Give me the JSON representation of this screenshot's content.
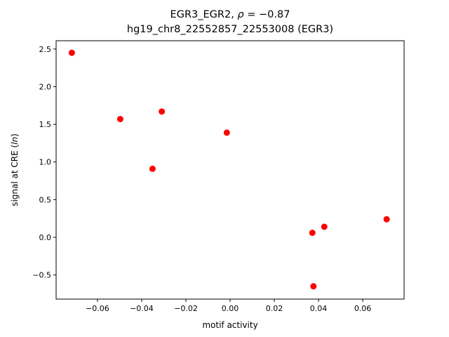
{
  "chart_data": {
    "type": "scatter",
    "title": {
      "prefix": "EGR3_EGR2, ",
      "rho_symbol": "ρ",
      "rho_text": " = −0.87",
      "line2": "hg19_chr8_22552857_22553008 (EGR3)"
    },
    "xlabel": "motif activity",
    "ylabel": {
      "text": "signal at CRE (",
      "italic": "ln",
      "close": ")"
    },
    "xlim": [
      -0.0787,
      0.0787
    ],
    "ylim": [
      -0.82,
      2.61
    ],
    "x_ticks": [
      {
        "value": -0.06,
        "label": "−0.06"
      },
      {
        "value": -0.04,
        "label": "−0.04"
      },
      {
        "value": -0.02,
        "label": "−0.02"
      },
      {
        "value": 0.0,
        "label": "0.00"
      },
      {
        "value": 0.02,
        "label": "0.02"
      },
      {
        "value": 0.04,
        "label": "0.04"
      },
      {
        "value": 0.06,
        "label": "0.06"
      }
    ],
    "y_ticks": [
      {
        "value": -0.5,
        "label": "−0.5"
      },
      {
        "value": 0.0,
        "label": "0.0"
      },
      {
        "value": 0.5,
        "label": "0.5"
      },
      {
        "value": 1.0,
        "label": "1.0"
      },
      {
        "value": 1.5,
        "label": "1.5"
      },
      {
        "value": 2.0,
        "label": "2.0"
      },
      {
        "value": 2.5,
        "label": "2.5"
      }
    ],
    "grid": false,
    "legend": "none",
    "marker_color": "#ff0000",
    "points": [
      {
        "x": -0.0716,
        "y": 2.45
      },
      {
        "x": -0.0497,
        "y": 1.57
      },
      {
        "x": -0.0309,
        "y": 1.67
      },
      {
        "x": -0.0351,
        "y": 0.91
      },
      {
        "x": -0.0015,
        "y": 1.39
      },
      {
        "x": 0.0372,
        "y": 0.06
      },
      {
        "x": 0.0426,
        "y": 0.14
      },
      {
        "x": 0.0708,
        "y": 0.24
      },
      {
        "x": 0.0377,
        "y": -0.65
      }
    ]
  }
}
